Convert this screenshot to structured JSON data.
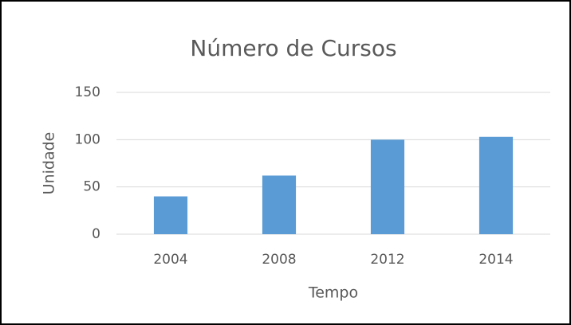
{
  "chart_data": {
    "type": "bar",
    "title": "Número de Cursos",
    "x_label": "Tempo",
    "y_label": "Unidade",
    "categories": [
      "2004",
      "2008",
      "2012",
      "2014"
    ],
    "values": [
      40,
      62,
      100,
      103
    ],
    "color": "#5b9bd5",
    "ylim": [
      0,
      150
    ],
    "yticks": [
      0,
      50,
      100,
      150
    ],
    "grid": true
  }
}
